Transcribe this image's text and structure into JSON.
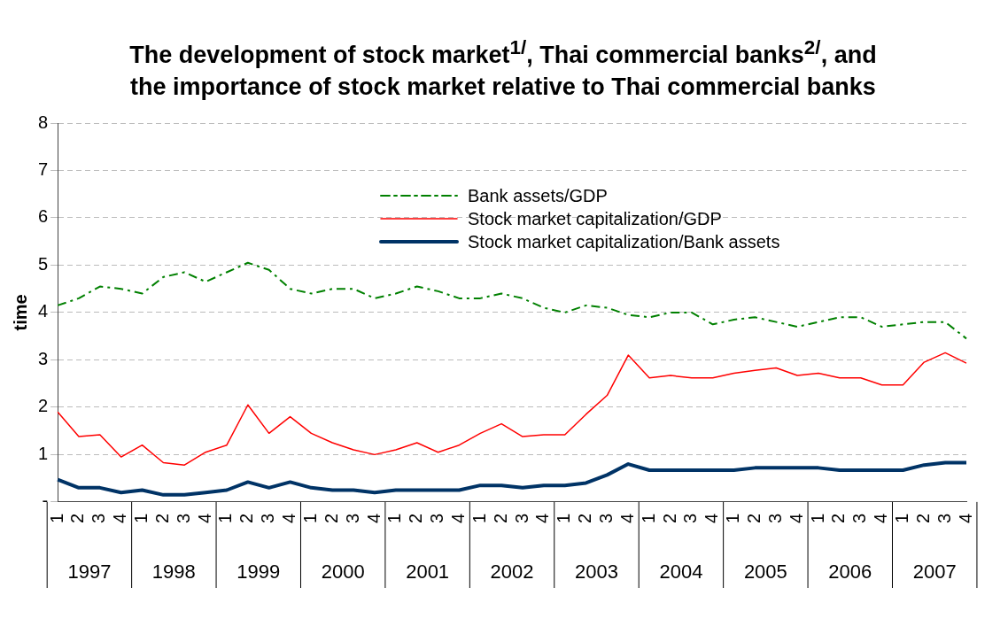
{
  "chart_data": {
    "type": "line",
    "title": "The development of stock market$^{1/}$, Thai commercial banks$^{2/}$, and the importance of stock market relative to Thai commercial banks",
    "ylabel": "time",
    "categories": [
      "1",
      "2",
      "3",
      "4",
      "1",
      "2",
      "3",
      "4",
      "1",
      "2",
      "3",
      "4",
      "1",
      "2",
      "3",
      "4",
      "1",
      "2",
      "3",
      "4",
      "1",
      "2",
      "3",
      "4",
      "1",
      "2",
      "3",
      "4",
      "1",
      "2",
      "3",
      "4",
      "1",
      "2",
      "3",
      "4",
      "1",
      "2",
      "3",
      "4",
      "1",
      "2",
      "3",
      "4"
    ],
    "annotations": [
      "1997",
      "1998",
      "1999",
      "2000",
      "2001",
      "2002",
      "2003",
      "2004",
      "2005",
      "2006",
      "2007"
    ],
    "series": [
      {
        "name": "Bank assets/GDP",
        "color": "#008000",
        "line_style": "dashed",
        "values": [
          4.15,
          4.3,
          4.55,
          4.5,
          4.4,
          4.75,
          4.85,
          4.65,
          4.85,
          5.05,
          4.9,
          4.5,
          4.4,
          4.5,
          4.5,
          4.3,
          4.4,
          4.55,
          4.45,
          4.3,
          4.3,
          4.4,
          4.3,
          4.1,
          4.0,
          4.15,
          4.1,
          3.95,
          3.9,
          4.0,
          4.0,
          3.75,
          3.85,
          3.9,
          3.8,
          3.7,
          3.8,
          3.9,
          3.9,
          3.7,
          3.75,
          3.8,
          3.8,
          3.45
        ]
      },
      {
        "name": "Stock market capitalization/GDP",
        "color": "#ff0000",
        "line_style": "solid",
        "values": [
          1.9,
          1.38,
          1.42,
          0.95,
          1.2,
          0.83,
          0.78,
          1.05,
          1.2,
          2.05,
          1.45,
          1.8,
          1.45,
          1.25,
          1.1,
          1.0,
          1.1,
          1.25,
          1.05,
          1.2,
          1.45,
          1.65,
          1.38,
          1.42,
          1.42,
          1.85,
          2.25,
          3.1,
          2.62,
          2.67,
          2.62,
          2.62,
          2.72,
          2.78,
          2.83,
          2.67,
          2.72,
          2.62,
          2.62,
          2.47,
          2.47,
          2.95,
          3.15,
          2.93
        ]
      },
      {
        "name": "Stock market capitalization/Bank assets",
        "color": "#003366",
        "line_style": "solid",
        "values": [
          0.47,
          0.3,
          0.3,
          0.2,
          0.25,
          0.15,
          0.15,
          0.2,
          0.25,
          0.42,
          0.3,
          0.42,
          0.3,
          0.25,
          0.25,
          0.2,
          0.25,
          0.25,
          0.25,
          0.25,
          0.35,
          0.35,
          0.3,
          0.35,
          0.35,
          0.4,
          0.57,
          0.8,
          0.67,
          0.67,
          0.67,
          0.67,
          0.67,
          0.72,
          0.72,
          0.72,
          0.72,
          0.67,
          0.67,
          0.67,
          0.67,
          0.78,
          0.83,
          0.83
        ]
      }
    ],
    "ylim": [
      0,
      8
    ],
    "yticks": [
      {
        "value": 0,
        "label": "-"
      },
      1,
      2,
      3,
      4,
      5,
      6,
      7,
      8
    ],
    "grid": "y",
    "legend": "top",
    "marker": "none"
  }
}
